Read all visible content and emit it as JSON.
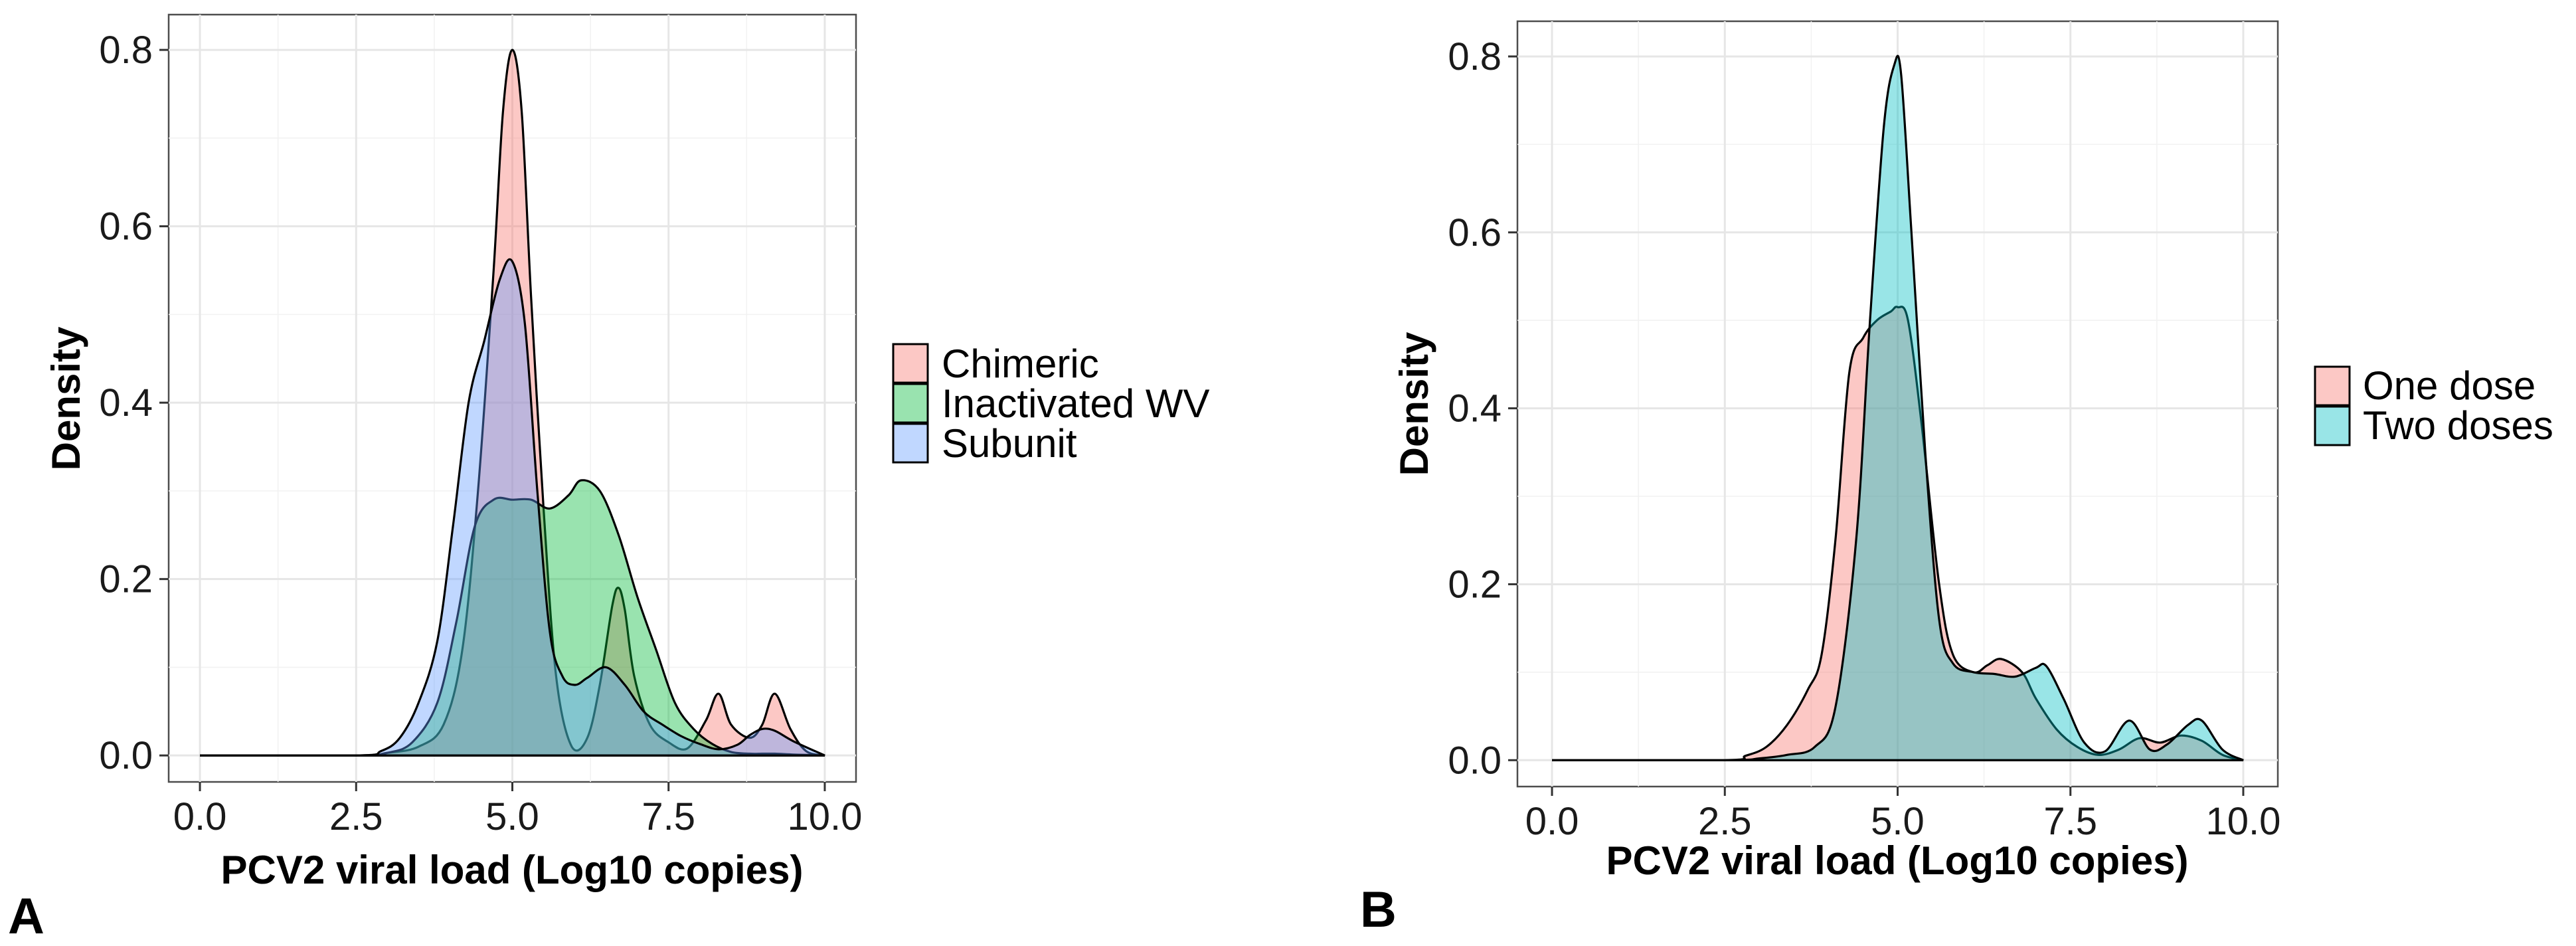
{
  "chart_data": [
    {
      "type": "area",
      "panel_label": "A",
      "title": "",
      "xlabel": "PCV2 viral load (Log10 copies)",
      "ylabel": "Density",
      "xlim": [
        -0.5,
        10.5
      ],
      "ylim": [
        -0.03,
        0.84
      ],
      "xticks": [
        0,
        2.5,
        5,
        7.5,
        10
      ],
      "xtick_labels": [
        "0.0",
        "2.5",
        "5.0",
        "7.5",
        "10.0"
      ],
      "yticks": [
        0,
        0.2,
        0.4,
        0.6,
        0.8
      ],
      "ytick_labels": [
        "0.0",
        "0.2",
        "0.4",
        "0.6",
        "0.8"
      ],
      "grid": true,
      "legend_position": "right",
      "series": [
        {
          "name": "Chimeric",
          "color": "#F8766D",
          "x": [
            0,
            2.5,
            3.0,
            3.5,
            3.9,
            4.2,
            4.45,
            4.7,
            4.85,
            5.0,
            5.15,
            5.3,
            5.5,
            5.7,
            5.95,
            6.2,
            6.4,
            6.6,
            6.7,
            6.8,
            6.95,
            7.2,
            7.5,
            7.8,
            8.1,
            8.3,
            8.5,
            8.8,
            9.0,
            9.2,
            9.45,
            9.7,
            10.0
          ],
          "values": [
            0,
            0,
            0.003,
            0.01,
            0.035,
            0.12,
            0.3,
            0.55,
            0.73,
            0.8,
            0.73,
            0.52,
            0.28,
            0.09,
            0.01,
            0.02,
            0.08,
            0.17,
            0.19,
            0.165,
            0.09,
            0.035,
            0.015,
            0.008,
            0.04,
            0.07,
            0.035,
            0.02,
            0.035,
            0.07,
            0.03,
            0.005,
            0
          ]
        },
        {
          "name": "Inactivated WV",
          "color": "#00BA38",
          "x": [
            0,
            2.5,
            3.0,
            3.4,
            3.8,
            4.1,
            4.4,
            4.7,
            5.0,
            5.3,
            5.6,
            5.9,
            6.1,
            6.4,
            6.7,
            7.0,
            7.3,
            7.6,
            7.9,
            8.2,
            8.5,
            8.8,
            9.0,
            9.2,
            9.5,
            9.8,
            10.0
          ],
          "values": [
            0,
            0,
            0.003,
            0.015,
            0.06,
            0.15,
            0.26,
            0.29,
            0.29,
            0.29,
            0.28,
            0.295,
            0.312,
            0.3,
            0.25,
            0.18,
            0.12,
            0.06,
            0.03,
            0.013,
            0.004,
            0.002,
            0.002,
            0.002,
            0.001,
            0.0005,
            0
          ]
        },
        {
          "name": "Subunit",
          "color": "#619CFF",
          "x": [
            0,
            2.5,
            2.9,
            3.2,
            3.5,
            3.8,
            4.05,
            4.3,
            4.55,
            4.8,
            5.0,
            5.2,
            5.4,
            5.6,
            5.8,
            6.0,
            6.2,
            6.5,
            6.8,
            7.1,
            7.4,
            7.7,
            8.0,
            8.3,
            8.6,
            8.8,
            9.0,
            9.2,
            9.5,
            10.0
          ],
          "values": [
            0,
            0,
            0.005,
            0.02,
            0.06,
            0.13,
            0.26,
            0.4,
            0.47,
            0.54,
            0.56,
            0.49,
            0.3,
            0.14,
            0.09,
            0.08,
            0.088,
            0.1,
            0.08,
            0.05,
            0.035,
            0.022,
            0.013,
            0.007,
            0.012,
            0.023,
            0.03,
            0.028,
            0.016,
            0
          ]
        }
      ]
    },
    {
      "type": "area",
      "panel_label": "B",
      "title": "",
      "xlabel": "PCV2 viral load (Log10 copies)",
      "ylabel": "Density",
      "xlim": [
        -0.5,
        10.5
      ],
      "ylim": [
        -0.03,
        0.84
      ],
      "xticks": [
        0,
        2.5,
        5,
        7.5,
        10
      ],
      "xtick_labels": [
        "0.0",
        "2.5",
        "5.0",
        "7.5",
        "10.0"
      ],
      "yticks": [
        0,
        0.2,
        0.4,
        0.6,
        0.8
      ],
      "ytick_labels": [
        "0.0",
        "0.2",
        "0.4",
        "0.6",
        "0.8"
      ],
      "grid": true,
      "legend_position": "right",
      "series": [
        {
          "name": "One dose",
          "color": "#F8766D",
          "x": [
            0,
            2.5,
            2.8,
            3.1,
            3.4,
            3.7,
            3.9,
            4.1,
            4.3,
            4.5,
            4.7,
            4.9,
            5.0,
            5.15,
            5.35,
            5.6,
            5.8,
            6.1,
            6.3,
            6.5,
            6.8,
            7.0,
            7.3,
            7.6,
            7.9,
            8.2,
            8.5,
            8.8,
            9.1,
            9.4,
            9.7,
            10.0
          ],
          "values": [
            0,
            0,
            0.005,
            0.015,
            0.04,
            0.08,
            0.12,
            0.25,
            0.44,
            0.48,
            0.5,
            0.51,
            0.515,
            0.5,
            0.38,
            0.2,
            0.12,
            0.1,
            0.108,
            0.115,
            0.1,
            0.07,
            0.035,
            0.015,
            0.006,
            0.012,
            0.025,
            0.02,
            0.028,
            0.022,
            0.006,
            0
          ]
        },
        {
          "name": "Two doses",
          "color": "#00BFC4",
          "x": [
            0,
            2.5,
            3.0,
            3.4,
            3.8,
            4.1,
            4.4,
            4.6,
            4.8,
            4.95,
            5.05,
            5.2,
            5.4,
            5.6,
            5.8,
            6.1,
            6.4,
            6.7,
            7.0,
            7.15,
            7.4,
            7.7,
            8.0,
            8.35,
            8.65,
            8.9,
            9.2,
            9.4,
            9.7,
            10.0
          ],
          "values": [
            0,
            0,
            0.002,
            0.006,
            0.015,
            0.06,
            0.25,
            0.5,
            0.72,
            0.79,
            0.78,
            0.6,
            0.35,
            0.16,
            0.11,
            0.1,
            0.098,
            0.095,
            0.105,
            0.107,
            0.07,
            0.02,
            0.01,
            0.045,
            0.012,
            0.018,
            0.04,
            0.045,
            0.012,
            0
          ]
        }
      ]
    }
  ]
}
